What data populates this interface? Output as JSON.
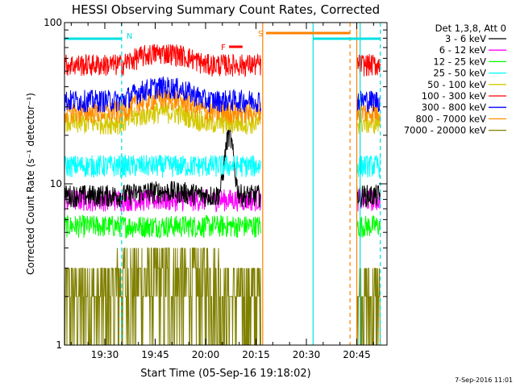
{
  "chart_data": {
    "type": "line",
    "title": "HESSI Observing Summary Count Rates, Corrected",
    "xlabel": "Start Time (05-Sep-16 19:18:02)",
    "ylabel": "Corrected Count Rate (s⁻¹ detector⁻¹)",
    "yscale": "log",
    "ylim": [
      1,
      100
    ],
    "xlim_minutes_after_19_18": [
      0,
      96
    ],
    "x_tick_labels": [
      "19:30",
      "19:45",
      "20:00",
      "20:15",
      "20:30",
      "20:45"
    ],
    "y_tick_labels": [
      "1",
      "10",
      "100"
    ],
    "legend_title": "Det 1,3,8, Att 0",
    "legend_position": "right",
    "timestamp": "7-Sep-2016 11:01",
    "series": [
      {
        "name": "3 - 6 keV",
        "color": "#000000"
      },
      {
        "name": "6 - 12 keV",
        "color": "#ff00ff"
      },
      {
        "name": "12 - 25 keV",
        "color": "#00ff00"
      },
      {
        "name": "25 - 50 keV",
        "color": "#00ffff"
      },
      {
        "name": "50 - 100 keV",
        "color": "#d4c800"
      },
      {
        "name": "100 - 300 keV",
        "color": "#ff0000"
      },
      {
        "name": "300 - 800 keV",
        "color": "#0000ff"
      },
      {
        "name": "800 - 7000 keV",
        "color": "#ff8c00"
      },
      {
        "name": "7000 - 20000 keV",
        "color": "#808000"
      }
    ],
    "segments": [
      {
        "start": "19:18",
        "end": "20:16:30"
      },
      {
        "start": "20:45",
        "end": "20:52"
      }
    ],
    "flag_annotations": [
      {
        "label": "N",
        "color": "#00e0e0",
        "bars": [
          [
            "19:18",
            "19:35"
          ],
          [
            "20:32",
            "20:52"
          ]
        ]
      },
      {
        "label": "F",
        "color": "#ff0000",
        "bars": [
          [
            "20:07",
            "20:11"
          ]
        ]
      },
      {
        "label": "S",
        "color": "#ff8000",
        "bars": [
          [
            "20:18",
            "20:43"
          ]
        ]
      }
    ],
    "vertical_markers": [
      {
        "time": "19:35",
        "color": "#00e0e0",
        "style": "dashed"
      },
      {
        "time": "20:17",
        "color": "#ff8000",
        "style": "solid"
      },
      {
        "time": "20:32",
        "color": "#00e0e0",
        "style": "solid"
      },
      {
        "time": "20:43",
        "color": "#ff8000",
        "style": "dashed"
      },
      {
        "time": "20:45",
        "color": "#ff8000",
        "style": "solid"
      },
      {
        "time": "20:46",
        "color": "#00e0e0",
        "style": "solid"
      },
      {
        "time": "20:52",
        "color": "#00e0e0",
        "style": "dashed"
      }
    ],
    "series_levels": {
      "100 - 300 keV": {
        "base": 55,
        "mid": 65
      },
      "300 - 800 keV": {
        "base": 33,
        "mid": 40
      },
      "800 - 7000 keV": {
        "base": 28,
        "mid": 34
      },
      "50 - 100 keV": {
        "base": 24,
        "mid": 28
      },
      "25 - 50 keV": {
        "base": 13,
        "mid": 13
      },
      "3 - 6 keV": {
        "base": 8.5,
        "mid": 9,
        "peak": 20,
        "peak_time": "20:07"
      },
      "6 - 12 keV": {
        "base": 8,
        "mid": 8
      },
      "12 - 25 keV": {
        "base": 5.5,
        "mid": 5.5
      },
      "7000 - 20000 keV": {
        "base": 1.6,
        "mid": 2.4
      }
    }
  }
}
